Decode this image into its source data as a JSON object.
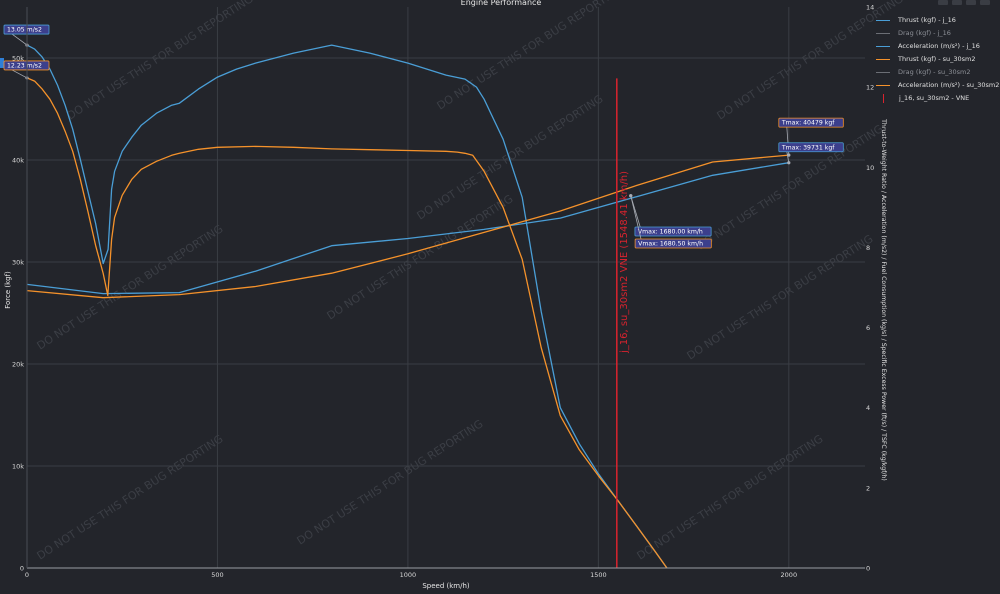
{
  "chart_data": {
    "type": "line",
    "title": "Engine Performance",
    "xlabel": "Speed (km/h)",
    "ylabel": "Force (kgf)",
    "y2label": "Thrust-to-Weight Ratio / Acceleration (m/s2) / Fuel Consumption (kg/s) / Specific Excess Power (ft/s) / TSFC (kg/kgf/h)",
    "xlim": [
      0,
      2200
    ],
    "ylim": [
      0,
      55000
    ],
    "y2lim": [
      0,
      14
    ],
    "x_ticks": [
      0,
      500,
      1000,
      1500,
      2000
    ],
    "y_ticks": [
      0,
      10000,
      20000,
      30000,
      40000,
      50000
    ],
    "y_tick_labels": [
      "0",
      "10k",
      "20k",
      "30k",
      "40k",
      "50k"
    ],
    "y2_ticks": [
      0,
      2,
      4,
      6,
      8,
      10,
      12,
      14
    ],
    "grid": true,
    "legend_position": "top-right",
    "series": [
      {
        "name": "Thrust (kgf) - j_16",
        "axis": "y",
        "color": "#4a9ed6",
        "x": [
          0,
          200,
          400,
          600,
          800,
          1000,
          1200,
          1400,
          1600,
          1800,
          2000
        ],
        "y": [
          27800,
          26900,
          27000,
          29100,
          31600,
          32300,
          33200,
          34300,
          36400,
          38500,
          39731
        ]
      },
      {
        "name": "Drag (kgf) - j_16",
        "axis": "y",
        "color": "#4a9ed6",
        "hidden": true,
        "x": [],
        "y": []
      },
      {
        "name": "Acceleration (m/s²) - j_16",
        "axis": "y2",
        "color": "#4a9ed6",
        "x": [
          0,
          20,
          40,
          60,
          80,
          100,
          120,
          140,
          160,
          180,
          200,
          213,
          222,
          230,
          250,
          275,
          300,
          340,
          380,
          400,
          450,
          500,
          550,
          600,
          700,
          800,
          900,
          1000,
          1100,
          1150,
          1180,
          1200,
          1250,
          1300,
          1350,
          1400,
          1450,
          1500,
          1550,
          1600,
          1650,
          1680
        ],
        "y": [
          13.05,
          12.95,
          12.75,
          12.45,
          12.05,
          11.55,
          10.95,
          10.2,
          9.4,
          8.6,
          7.6,
          7.95,
          9.45,
          9.9,
          10.4,
          10.75,
          11.05,
          11.35,
          11.55,
          11.6,
          11.95,
          12.25,
          12.45,
          12.6,
          12.85,
          13.05,
          12.85,
          12.6,
          12.3,
          12.2,
          12.0,
          11.7,
          10.7,
          9.25,
          6.4,
          4.0,
          3.1,
          2.35,
          1.7,
          1.05,
          0.4,
          0
        ]
      },
      {
        "name": "Thrust (kgf) - su_30sm2",
        "axis": "y",
        "color": "#f5922b",
        "x": [
          0,
          200,
          400,
          600,
          800,
          1000,
          1200,
          1400,
          1600,
          1800,
          2000
        ],
        "y": [
          27200,
          26500,
          26800,
          27600,
          28900,
          30800,
          32900,
          35000,
          37500,
          39800,
          40479
        ]
      },
      {
        "name": "Drag (kgf) - su_30sm2",
        "axis": "y",
        "color": "#f5922b",
        "hidden": true,
        "x": [],
        "y": []
      },
      {
        "name": "Acceleration (m/s²) - su_30sm2",
        "axis": "y2",
        "color": "#f5922b",
        "x": [
          0,
          20,
          40,
          60,
          80,
          100,
          120,
          140,
          160,
          180,
          200,
          212,
          222,
          230,
          250,
          275,
          300,
          340,
          380,
          400,
          450,
          500,
          600,
          700,
          800,
          900,
          1000,
          1100,
          1130,
          1150,
          1170,
          1200,
          1250,
          1300,
          1350,
          1400,
          1450,
          1500,
          1550,
          1600,
          1650,
          1680
        ],
        "y": [
          12.23,
          12.15,
          11.95,
          11.7,
          11.35,
          10.9,
          10.4,
          9.7,
          8.9,
          8.05,
          7.35,
          6.8,
          8.2,
          8.75,
          9.3,
          9.7,
          9.95,
          10.15,
          10.3,
          10.35,
          10.45,
          10.5,
          10.52,
          10.5,
          10.46,
          10.44,
          10.42,
          10.4,
          10.38,
          10.35,
          10.3,
          9.9,
          9.0,
          7.7,
          5.5,
          3.8,
          2.95,
          2.3,
          1.7,
          1.05,
          0.4,
          0
        ]
      },
      {
        "name": "j_16, su_30sm2 - VNE",
        "axis": "y",
        "color": "#d9232e",
        "type": "vline",
        "x": [
          1548.41,
          1548.41
        ],
        "y": [
          0,
          48000
        ]
      }
    ],
    "annotations": [
      {
        "id": "acc-j16",
        "text": "13.05 m/s2",
        "x": 0,
        "y": 13.05,
        "axis": "y2",
        "color": "#4a9ed6"
      },
      {
        "id": "acc-su",
        "text": "12.23 m/s2",
        "x": 0,
        "y": 12.23,
        "axis": "y2",
        "color": "#f5922b"
      },
      {
        "id": "tmax-su",
        "text": "Tmax: 40479 kgf",
        "x": 2000,
        "y": 40479,
        "axis": "y",
        "color": "#f5922b"
      },
      {
        "id": "tmax-j16",
        "text": "Tmax: 39731 kgf",
        "x": 2000,
        "y": 39731,
        "axis": "y",
        "color": "#4a9ed6"
      },
      {
        "id": "vmax-j16",
        "text": "Vmax: 1680.00 km/h",
        "x": 1680,
        "y": 0,
        "axis": "y",
        "color": "#4a9ed6"
      },
      {
        "id": "vmax-su",
        "text": "Vmax: 1680.50 km/h",
        "x": 1680.5,
        "y": 0,
        "axis": "y",
        "color": "#f5922b"
      }
    ],
    "vne_label": "j_16, su_30sm2 VNE (1548.41 km/h)",
    "watermark": "DO NOT USE THIS FOR BUG REPORTING"
  }
}
